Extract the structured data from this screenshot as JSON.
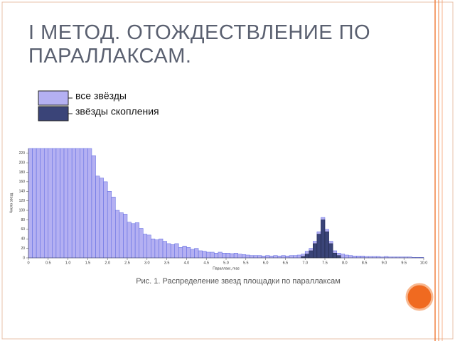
{
  "slide": {
    "title": "I МЕТОД. ОТОЖДЕСТВЛЕНИЕ ПО ПАРАЛЛАКСАМ.",
    "caption": "Рис. 1. Распределение звезд площадки по параллаксам"
  },
  "chart_data": {
    "type": "histogram",
    "x_label": "Параллакс, mas",
    "y_label": "Число звезд",
    "bins": [
      0,
      0.1,
      0.2,
      0.3,
      0.4,
      0.5,
      0.6,
      0.7,
      0.8,
      0.9,
      1,
      1.1,
      1.2,
      1.3,
      1.4,
      1.5,
      1.6,
      1.7,
      1.8,
      1.9,
      2,
      2.1,
      2.2,
      2.3,
      2.4,
      2.5,
      2.6,
      2.7,
      2.8,
      2.9,
      3,
      3.1,
      3.2,
      3.3,
      3.4,
      3.5,
      3.6,
      3.7,
      3.8,
      3.9,
      4,
      4.1,
      4.2,
      4.3,
      4.4,
      4.5,
      4.6,
      4.7,
      4.8,
      4.9,
      5,
      5.1,
      5.2,
      5.3,
      5.4,
      5.5,
      5.6,
      5.7,
      5.8,
      5.9,
      6,
      6.1,
      6.2,
      6.3,
      6.4,
      6.5,
      6.6,
      6.7,
      6.8,
      6.9,
      7,
      7.1,
      7.2,
      7.3,
      7.4,
      7.5,
      7.6,
      7.7,
      7.8,
      7.9,
      8,
      8.1,
      8.2,
      8.3,
      8.4,
      8.5,
      8.6,
      8.7,
      8.8,
      8.9,
      9,
      9.1,
      9.2,
      9.3,
      9.4,
      9.5,
      9.6,
      9.7,
      9.8,
      9.9,
      10
    ],
    "series": [
      {
        "name": "все звёзды",
        "color": "#b4b0f2",
        "values": [
          230,
          230,
          230,
          230,
          230,
          230,
          230,
          230,
          230,
          230,
          230,
          230,
          230,
          230,
          230,
          230,
          215,
          172,
          168,
          160,
          140,
          128,
          100,
          95,
          92,
          75,
          72,
          74,
          62,
          50,
          48,
          40,
          38,
          40,
          35,
          30,
          28,
          30,
          22,
          25,
          22,
          18,
          20,
          15,
          14,
          12,
          12,
          10,
          12,
          10,
          10,
          9,
          10,
          8,
          7,
          6,
          5,
          5,
          5,
          4,
          5,
          4,
          5,
          4,
          5,
          4,
          5,
          5,
          6,
          8,
          14,
          20,
          35,
          55,
          85,
          60,
          35,
          15,
          10,
          8,
          6,
          5,
          4,
          4,
          4,
          3,
          3,
          3,
          3,
          2,
          3,
          2,
          2,
          2,
          2,
          2,
          2,
          1,
          1,
          1
        ]
      },
      {
        "name": "звёзды скопления",
        "color": "#3a4478",
        "values": [
          0,
          0,
          0,
          0,
          0,
          0,
          0,
          0,
          0,
          0,
          0,
          0,
          0,
          0,
          0,
          0,
          0,
          0,
          0,
          0,
          0,
          0,
          0,
          0,
          0,
          0,
          0,
          0,
          0,
          0,
          0,
          0,
          0,
          0,
          0,
          0,
          0,
          0,
          0,
          0,
          0,
          0,
          0,
          0,
          0,
          0,
          0,
          0,
          0,
          0,
          0,
          0,
          0,
          0,
          0,
          0,
          0,
          0,
          0,
          0,
          0,
          0,
          0,
          0,
          0,
          0,
          0,
          0,
          0,
          3,
          8,
          15,
          30,
          50,
          80,
          55,
          30,
          10,
          5,
          0,
          0,
          0,
          0,
          0,
          0,
          0,
          0,
          0,
          0,
          0,
          0,
          0,
          0,
          0,
          0,
          0,
          0,
          0,
          0,
          0
        ]
      }
    ],
    "xlim": [
      0,
      10
    ],
    "xticks": [
      0,
      0.5,
      {
        "value": 1,
        "label": "1.0"
      },
      1.5,
      {
        "value": 2,
        "label": "2.0"
      },
      2.5,
      {
        "value": 3,
        "label": "3.0"
      },
      3.5,
      {
        "value": 4,
        "label": "4.0"
      },
      4.5,
      {
        "value": 5,
        "label": "5.0"
      },
      5.5,
      {
        "value": 6,
        "label": "6.0"
      },
      6.5,
      {
        "value": 7,
        "label": "7.0"
      },
      7.5,
      {
        "value": 8,
        "label": "8.0"
      },
      8.5,
      {
        "value": 9,
        "label": "9.0"
      },
      9.5,
      {
        "value": 10,
        "label": "10.0"
      }
    ],
    "ylim": [
      0,
      230
    ],
    "yticks": [
      0,
      20,
      40,
      60,
      80,
      100,
      120,
      140,
      160,
      180,
      200,
      220
    ]
  }
}
